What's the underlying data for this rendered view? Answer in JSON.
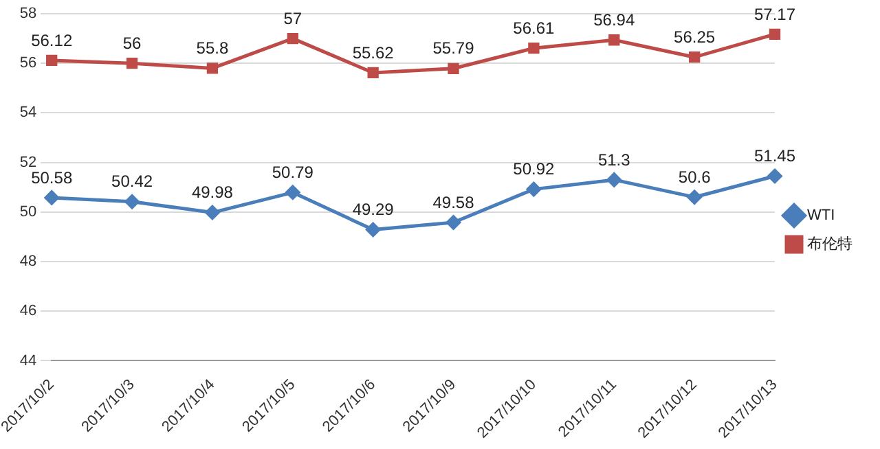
{
  "chart_data": {
    "type": "line",
    "categories": [
      "2017/10/2",
      "2017/10/3",
      "2017/10/4",
      "2017/10/5",
      "2017/10/6",
      "2017/10/9",
      "2017/10/10",
      "2017/10/11",
      "2017/10/12",
      "2017/10/13"
    ],
    "series": [
      {
        "name": "WTI",
        "color": "#4a7ebb",
        "marker": "diamond",
        "values": [
          50.58,
          50.42,
          49.98,
          50.79,
          49.29,
          49.58,
          50.92,
          51.3,
          50.6,
          51.45
        ]
      },
      {
        "name": "布伦特",
        "color": "#be4b48",
        "marker": "square",
        "values": [
          56.12,
          56,
          55.8,
          57,
          55.62,
          55.79,
          56.61,
          56.94,
          56.25,
          57.17
        ]
      }
    ],
    "ylim": [
      44,
      58
    ],
    "yticks": [
      44,
      46,
      48,
      50,
      52,
      54,
      56,
      58
    ],
    "grid": "y",
    "legend": "right",
    "data_labels": true,
    "line_style": "solid"
  }
}
